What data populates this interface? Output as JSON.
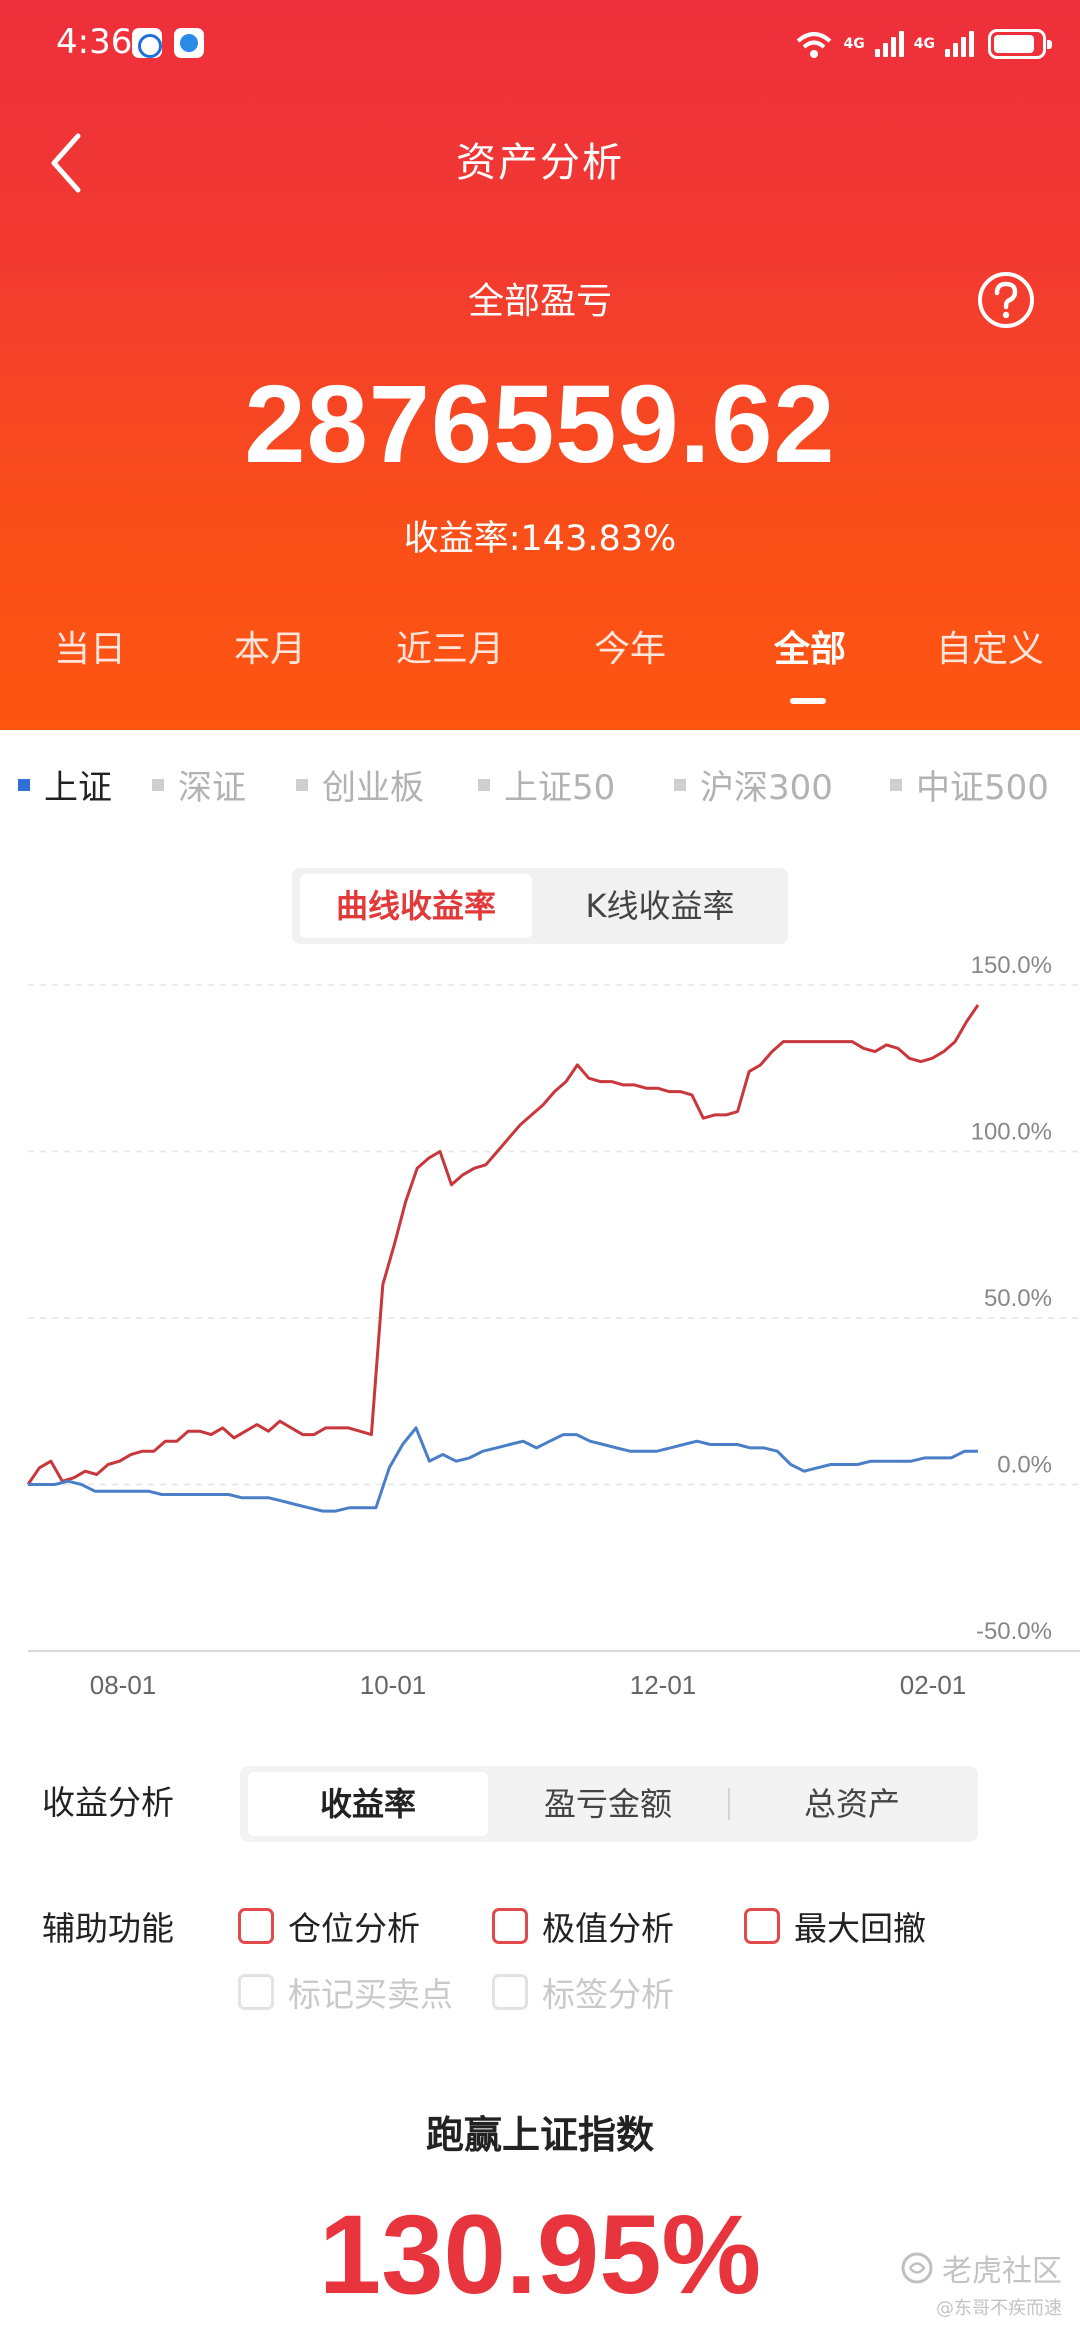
{
  "status_bar": {
    "time": "4:36",
    "wifi_label": "6",
    "net1": "4G",
    "net2": "4G"
  },
  "header": {
    "title": "资产分析",
    "pnl_label": "全部盈亏",
    "pnl_value": "2876559.62",
    "yield_label": "收益率:",
    "yield_value": "143.83%"
  },
  "period_tabs": [
    "当日",
    "本月",
    "近三月",
    "今年",
    "全部",
    "自定义"
  ],
  "period_active": "全部",
  "index_items": [
    "上证",
    "深证",
    "创业板",
    "上证50",
    "沪深300",
    "中证500"
  ],
  "index_active": "上证",
  "chart_mode": {
    "active": "曲线收益率",
    "inactive": "K线收益率"
  },
  "chart_data": {
    "type": "line",
    "x_ticks": [
      "08-01",
      "10-01",
      "12-01",
      "02-01"
    ],
    "y_ticks": [
      "150.0%",
      "100.0%",
      "50.0%",
      "0.0%",
      "-50.0%"
    ],
    "ylim": [
      -50,
      150
    ],
    "grid": true,
    "series": [
      {
        "color": "#c8373b",
        "values": [
          0,
          5,
          7,
          1,
          2,
          4,
          3,
          6,
          7,
          9,
          10,
          10,
          13,
          13,
          16,
          16,
          15,
          17,
          14,
          16,
          18,
          16,
          19,
          17,
          15,
          15,
          17,
          17,
          17,
          16,
          15,
          60,
          72,
          85,
          95,
          98,
          100,
          90,
          93,
          95,
          96,
          100,
          104,
          108,
          111,
          114,
          118,
          121,
          126,
          122,
          121,
          121,
          120,
          120,
          119,
          119,
          118,
          118,
          117,
          110,
          111,
          111,
          112,
          124,
          126,
          130,
          133,
          133,
          133,
          133,
          133,
          133,
          133,
          131,
          130,
          132,
          131,
          128,
          127,
          128,
          130,
          133,
          139,
          144
        ]
      },
      {
        "color": "#4a7fc8",
        "values": [
          0,
          0,
          0,
          1,
          0,
          -2,
          -2,
          -2,
          -2,
          -2,
          -3,
          -3,
          -3,
          -3,
          -3,
          -3,
          -4,
          -4,
          -4,
          -5,
          -6,
          -7,
          -8,
          -8,
          -7,
          -7,
          -7,
          5,
          12,
          17,
          7,
          9,
          7,
          8,
          10,
          11,
          12,
          13,
          11,
          13,
          15,
          15,
          13,
          12,
          11,
          10,
          10,
          10,
          11,
          12,
          13,
          12,
          12,
          12,
          11,
          11,
          10,
          6,
          4,
          5,
          6,
          6,
          6,
          7,
          7,
          7,
          7,
          8,
          8,
          8,
          10,
          10
        ]
      }
    ]
  },
  "analysis": {
    "label": "收益分析",
    "options": [
      "收益率",
      "盈亏金额",
      "总资产"
    ],
    "active": "收益率"
  },
  "aux": {
    "label": "辅助功能",
    "options": [
      "仓位分析",
      "极值分析",
      "最大回撤"
    ],
    "disabled_options": [
      "标记买卖点",
      "标签分析"
    ]
  },
  "beat": {
    "label": "跑赢上证指数",
    "value": "130.95%"
  },
  "watermark": {
    "main": "老虎社区",
    "sub": "@东哥不疾而速"
  }
}
